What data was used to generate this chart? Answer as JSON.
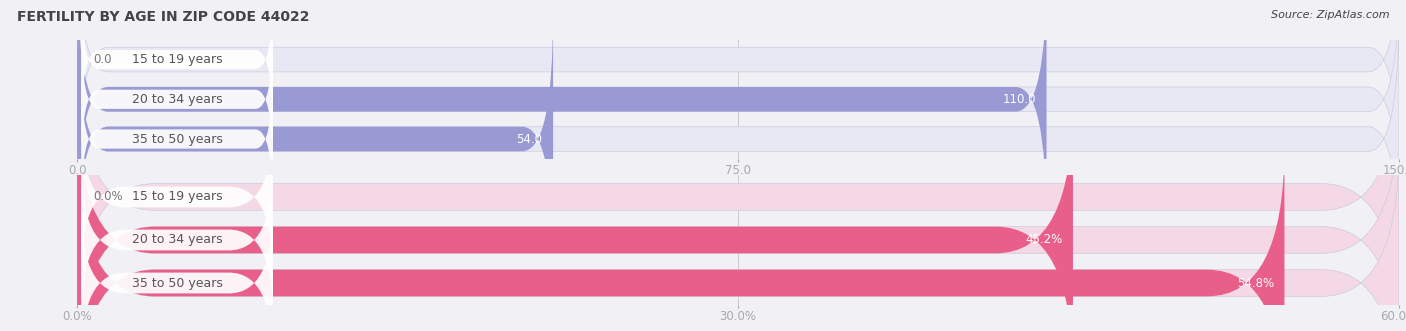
{
  "title": "FERTILITY BY AGE IN ZIP CODE 44022",
  "source": "Source: ZipAtlas.com",
  "top_chart": {
    "categories": [
      "15 to 19 years",
      "20 to 34 years",
      "35 to 50 years"
    ],
    "values": [
      0.0,
      110.0,
      54.0
    ],
    "xlim": [
      0,
      150
    ],
    "xticks": [
      0.0,
      75.0,
      150.0
    ],
    "xtick_labels": [
      "0.0",
      "75.0",
      "150.0"
    ],
    "bar_color": "#9999d4",
    "bar_bg_color": "#e8e8f4",
    "label_color": "#555555"
  },
  "bottom_chart": {
    "categories": [
      "15 to 19 years",
      "20 to 34 years",
      "35 to 50 years"
    ],
    "values": [
      0.0,
      45.2,
      54.8
    ],
    "xlim": [
      0,
      60
    ],
    "xticks": [
      0.0,
      30.0,
      60.0
    ],
    "xtick_labels": [
      "0.0%",
      "30.0%",
      "60.0%"
    ],
    "bar_color": "#e8608a",
    "bar_bg_color": "#f5d8e5",
    "label_color": "#555555"
  },
  "bg_color": "#f0f0f5",
  "panel_bg": "#ffffff",
  "title_color": "#444444",
  "title_fontsize": 10,
  "source_fontsize": 8,
  "category_fontsize": 9,
  "value_fontsize": 8.5
}
